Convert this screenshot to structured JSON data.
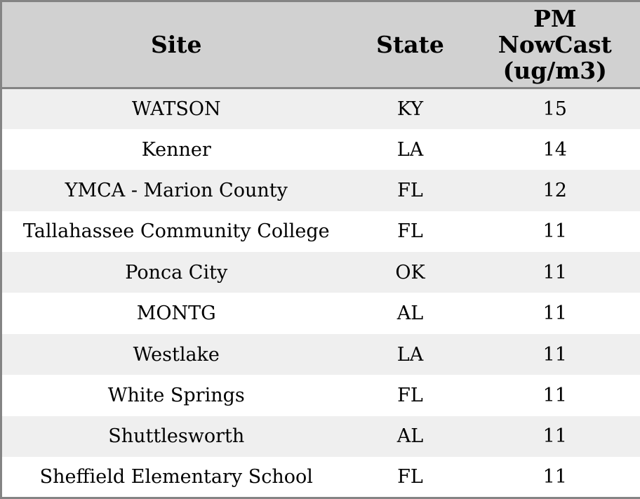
{
  "colors": {
    "border": "#848484",
    "header_bg": "#d1d1d1",
    "row_alt_bg": "#efefef",
    "row_bg": "#ffffff",
    "text": "#000000"
  },
  "table": {
    "header": {
      "site": "Site",
      "state": "State",
      "pm_lines": [
        "PM",
        "NowCast",
        "(ug/m3)"
      ]
    },
    "rows": [
      {
        "site": "WATSON",
        "state": "KY",
        "pm": "15"
      },
      {
        "site": "Kenner",
        "state": "LA",
        "pm": "14"
      },
      {
        "site": "YMCA - Marion County",
        "state": "FL",
        "pm": "12"
      },
      {
        "site": "Tallahassee Community College",
        "state": "FL",
        "pm": "11"
      },
      {
        "site": "Ponca City",
        "state": "OK",
        "pm": "11"
      },
      {
        "site": "MONTG",
        "state": "AL",
        "pm": "11"
      },
      {
        "site": "Westlake",
        "state": "LA",
        "pm": "11"
      },
      {
        "site": "White Springs",
        "state": "FL",
        "pm": "11"
      },
      {
        "site": "Shuttlesworth",
        "state": "AL",
        "pm": "11"
      },
      {
        "site": "Sheffield Elementary School",
        "state": "FL",
        "pm": "11"
      }
    ]
  },
  "chart_data": {
    "type": "table",
    "title": "",
    "columns": [
      "Site",
      "State",
      "PM NowCast (ug/m3)"
    ],
    "rows": [
      [
        "WATSON",
        "KY",
        15
      ],
      [
        "Kenner",
        "LA",
        14
      ],
      [
        "YMCA - Marion County",
        "FL",
        12
      ],
      [
        "Tallahassee Community College",
        "FL",
        11
      ],
      [
        "Ponca City",
        "OK",
        11
      ],
      [
        "MONTG",
        "AL",
        11
      ],
      [
        "Westlake",
        "LA",
        11
      ],
      [
        "White Springs",
        "FL",
        11
      ],
      [
        "Shuttlesworth",
        "AL",
        11
      ],
      [
        "Sheffield Elementary School",
        "FL",
        11
      ]
    ]
  }
}
